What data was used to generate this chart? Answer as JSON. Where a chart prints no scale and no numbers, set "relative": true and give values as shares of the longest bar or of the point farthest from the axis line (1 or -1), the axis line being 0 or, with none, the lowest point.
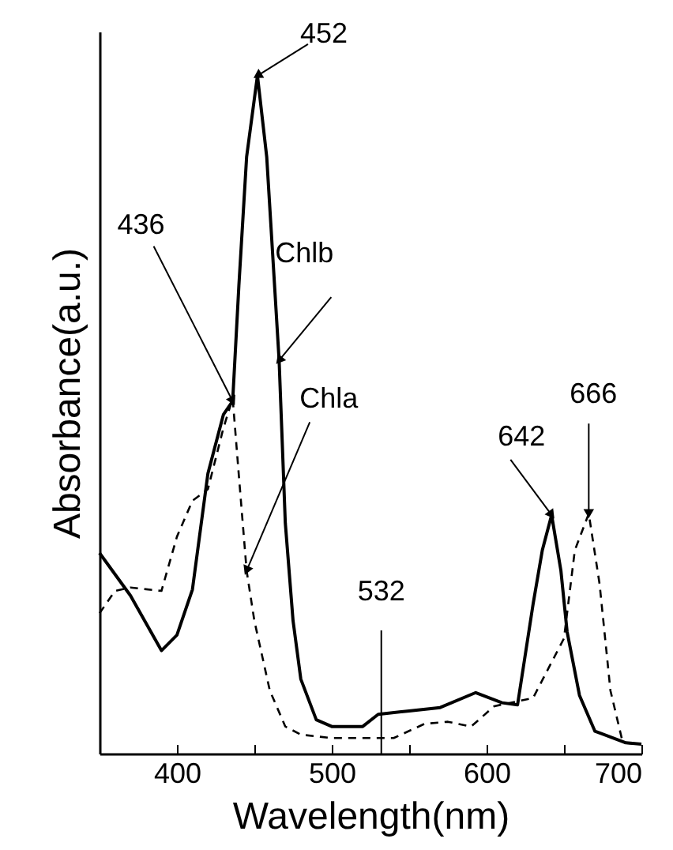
{
  "chart_data": {
    "type": "line",
    "xlabel": "Wavelength(nm)",
    "ylabel": "Absorbance(a.u.)",
    "relative": true,
    "xlim": [
      350,
      700
    ],
    "xticks": [
      400,
      {
        "value": 450,
        "label": null
      },
      500,
      {
        "value": 550,
        "label": null
      },
      600,
      {
        "value": 650,
        "label": null
      },
      700
    ],
    "grid": false,
    "series": [
      {
        "color": "#000000",
        "line_style": "solid",
        "x": [
          350,
          370,
          390,
          400,
          410,
          420,
          430,
          436,
          440,
          445,
          452,
          458,
          462,
          466,
          470,
          475,
          480,
          490,
          500,
          520,
          530,
          550,
          570,
          593,
          610,
          620,
          630,
          636,
          642,
          648,
          652,
          660,
          670,
          690,
          700
        ],
        "values": [
          0.296,
          0.233,
          0.152,
          0.175,
          0.242,
          0.413,
          0.5,
          0.52,
          0.69,
          0.88,
          1,
          0.88,
          0.73,
          0.58,
          0.34,
          0.196,
          0.11,
          0.05,
          0.04,
          0.04,
          0.058,
          0.063,
          0.068,
          0.09,
          0.075,
          0.072,
          0.22,
          0.3,
          0.352,
          0.27,
          0.18,
          0.086,
          0.033,
          0.016,
          0.014
        ]
      },
      {
        "color": "#000000",
        "line_style": "dashed",
        "x": [
          350,
          360,
          370,
          390,
          400,
          410,
          420,
          430,
          436,
          440,
          445,
          450,
          460,
          470,
          480,
          500,
          540,
          560,
          575,
          590,
          605,
          630,
          650,
          657,
          666,
          673,
          680,
          688,
          700
        ],
        "values": [
          0.207,
          0.24,
          0.245,
          0.24,
          0.32,
          0.373,
          0.39,
          0.48,
          0.524,
          0.41,
          0.27,
          0.196,
          0.093,
          0.04,
          0.028,
          0.023,
          0.023,
          0.044,
          0.047,
          0.04,
          0.07,
          0.082,
          0.17,
          0.3,
          0.354,
          0.25,
          0.093,
          0.016,
          0.014
        ]
      }
    ],
    "annotations": [
      {
        "text": "452",
        "x": 452,
        "y": 1
      },
      {
        "text": "436",
        "x": 436,
        "y": 0.52
      },
      {
        "text": "Chlb",
        "x": 466,
        "y": 0.58
      },
      {
        "text": "Chla",
        "x": 445,
        "y": 0.27
      },
      {
        "text": "642",
        "x": 642,
        "y": 0.352
      },
      {
        "text": "666",
        "x": 666,
        "y": 0.354
      }
    ],
    "ref_lines": [
      {
        "axis": "x",
        "value": 532,
        "label": "532"
      }
    ]
  }
}
